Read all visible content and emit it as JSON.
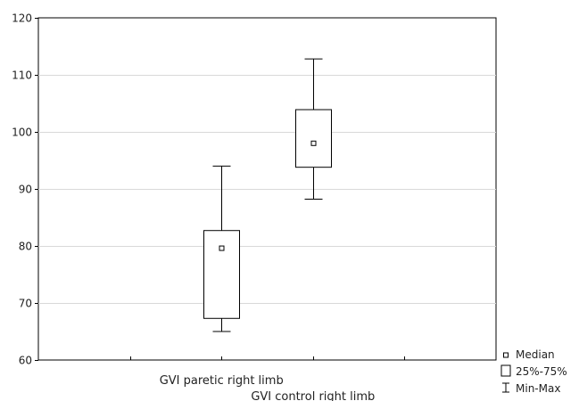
{
  "chart_data": {
    "type": "boxplot",
    "title": "",
    "xlabel": "",
    "ylabel": "",
    "ylim": [
      60,
      120
    ],
    "yticks": [
      60,
      70,
      80,
      90,
      100,
      110,
      120
    ],
    "y_tick_labels": [
      "60",
      "70",
      "80",
      "90",
      "100",
      "110",
      "120"
    ],
    "grid": "horizontal",
    "legend_position": "bottom-right",
    "categories": [
      "GVI paretic right limb",
      "GVI control right limb"
    ],
    "boxes": [
      {
        "category": "GVI paretic right limb",
        "min": 65,
        "q1": 67.3,
        "median": 79.6,
        "q3": 82.7,
        "max": 94
      },
      {
        "category": "GVI control right limb",
        "min": 88.2,
        "q1": 93.8,
        "median": 98,
        "q3": 103.9,
        "max": 112.8
      }
    ],
    "legend": [
      {
        "key": "median",
        "label": "Median"
      },
      {
        "key": "box",
        "label": "25%-75%"
      },
      {
        "key": "whisker",
        "label": "Min-Max"
      }
    ]
  }
}
